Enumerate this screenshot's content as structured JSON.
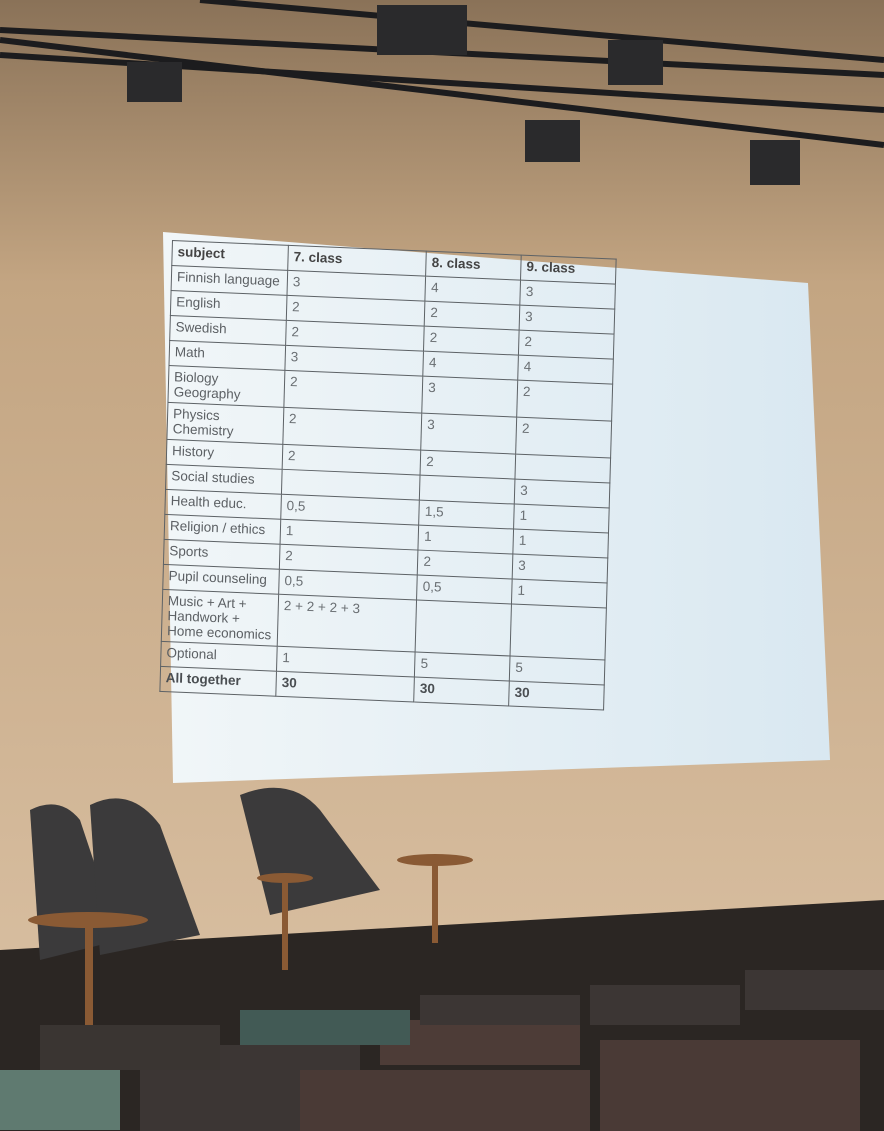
{
  "table": {
    "header": [
      "subject",
      "7. class",
      "8. class",
      "9. class"
    ],
    "rows": [
      [
        "Finnish language",
        "3",
        "4",
        "3"
      ],
      [
        "English",
        "2",
        "2",
        "3"
      ],
      [
        "Swedish",
        "2",
        "2",
        "2"
      ],
      [
        "Math",
        "3",
        "4",
        "4"
      ],
      [
        "Biology Geography",
        "2",
        "3",
        "2"
      ],
      [
        "Physics Chemistry",
        "2",
        "3",
        "2"
      ],
      [
        "History",
        "2",
        "2",
        null
      ],
      [
        "Social studies",
        null,
        null,
        "3"
      ],
      [
        "Health educ.",
        "0,5",
        "1,5",
        "1"
      ],
      [
        "Religion / ethics",
        "1",
        "1",
        "1"
      ],
      [
        "Sports",
        "2",
        "2",
        "3"
      ],
      [
        "Pupil counseling",
        "0,5",
        "0,5",
        "1"
      ],
      [
        "Music + Art + Handwork + Home economics",
        "2 + 2 + 2 + 3",
        null,
        null
      ],
      [
        "Optional",
        "1",
        "5",
        "5"
      ],
      [
        "All together",
        "30",
        "30",
        "30"
      ]
    ]
  }
}
